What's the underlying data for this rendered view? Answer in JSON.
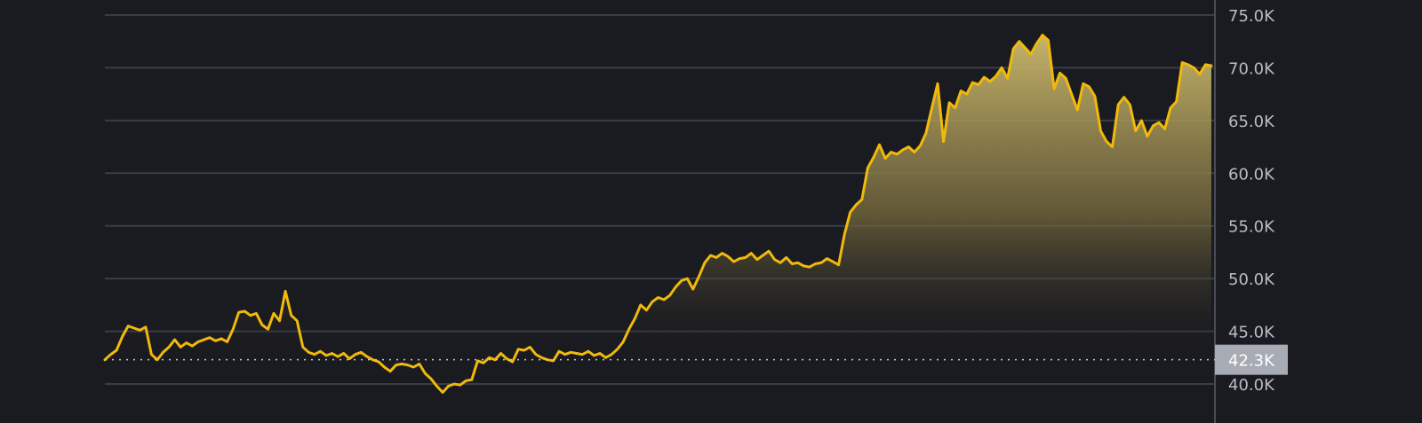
{
  "chart_data": {
    "type": "area",
    "title": "",
    "xlabel": "",
    "ylabel": "",
    "ylim": [
      39000,
      75500
    ],
    "grid": true,
    "y_ticks": [
      {
        "value": 75000,
        "label": "75.0K"
      },
      {
        "value": 70000,
        "label": "70.0K"
      },
      {
        "value": 65000,
        "label": "65.0K"
      },
      {
        "value": 60000,
        "label": "60.0K"
      },
      {
        "value": 55000,
        "label": "55.0K"
      },
      {
        "value": 50000,
        "label": "50.0K"
      },
      {
        "value": 45000,
        "label": "45.0K"
      },
      {
        "value": 40000,
        "label": "40.0K"
      }
    ],
    "reference_line": {
      "value": 42300,
      "label": "42.3K"
    },
    "colors": {
      "background": "#1a1b20",
      "line": "#f0b90b",
      "grid": "#3a3d45",
      "axis": "#4a4d55",
      "badge": "#a7abb3"
    },
    "series": [
      {
        "values": [
          42.3,
          42.8,
          43.2,
          44.5,
          45.5,
          45.3,
          45.1,
          45.4,
          42.8,
          42.3,
          43.0,
          43.5,
          44.2,
          43.5,
          43.9,
          43.6,
          44.0,
          44.2,
          44.4,
          44.1,
          44.3,
          44.0,
          45.2,
          46.8,
          46.9,
          46.5,
          46.7,
          45.6,
          45.2,
          46.7,
          46.0,
          48.8,
          46.5,
          46.0,
          43.5,
          43.0,
          42.8,
          43.1,
          42.7,
          42.9,
          42.6,
          42.9,
          42.4,
          42.8,
          43.0,
          42.6,
          42.3,
          42.1,
          41.6,
          41.2,
          41.8,
          41.9,
          41.8,
          41.6,
          41.9,
          41.0,
          40.5,
          39.8,
          39.2,
          39.8,
          40.0,
          39.9,
          40.3,
          40.4,
          42.2,
          42.0,
          42.5,
          42.3,
          42.9,
          42.4,
          42.1,
          43.3,
          43.2,
          43.5,
          42.8,
          42.5,
          42.3,
          42.2,
          43.1,
          42.8,
          43.0,
          42.9,
          42.8,
          43.1,
          42.7,
          42.9,
          42.5,
          42.8,
          43.3,
          44.0,
          45.2,
          46.2,
          47.5,
          47.0,
          47.8,
          48.2,
          48.0,
          48.4,
          49.2,
          49.8,
          50.0,
          49.0,
          50.2,
          51.5,
          52.2,
          52.0,
          52.4,
          52.1,
          51.6,
          51.9,
          52.0,
          52.4,
          51.8,
          52.2,
          52.6,
          51.8,
          51.5,
          52.0,
          51.4,
          51.5,
          51.2,
          51.1,
          51.4,
          51.5,
          51.9,
          51.6,
          51.3,
          54.2,
          56.3,
          57.0,
          57.5,
          60.5,
          61.5,
          62.7,
          61.4,
          62.0,
          61.8,
          62.2,
          62.5,
          62.0,
          62.6,
          63.8,
          66.2,
          68.5,
          63.0,
          66.7,
          66.2,
          67.8,
          67.5,
          68.6,
          68.4,
          69.1,
          68.7,
          69.2,
          70.0,
          69.0,
          71.8,
          72.5,
          71.9,
          71.3,
          72.3,
          73.1,
          72.6,
          68.0,
          69.5,
          69.0,
          67.5,
          66.0,
          68.5,
          68.2,
          67.3,
          64.0,
          63.0,
          62.5,
          66.5,
          67.2,
          66.5,
          64.0,
          65.0,
          63.5,
          64.5,
          64.8,
          64.2,
          66.2,
          66.8,
          70.5,
          70.3,
          70.0,
          69.4,
          70.3,
          70.2
        ]
      }
    ]
  }
}
